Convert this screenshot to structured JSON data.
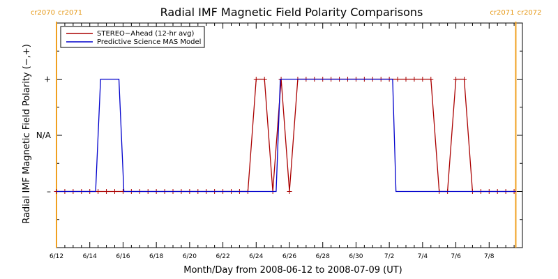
{
  "chart_data": {
    "type": "line",
    "title": "Radial IMF Magnetic Field Polarity Comparisons",
    "xlabel": "Month/Day from 2008-06-12 to 2008-07-09 (UT)",
    "ylabel": "Radial IMF Magnetic Field Polarity (−,+)",
    "x_start": "2008-06-12",
    "x_end": "2008-07-09",
    "xlim_days": [
      0,
      28
    ],
    "ylim": [
      -2,
      2
    ],
    "x_ticks": [
      {
        "day": 0,
        "label": "6/12"
      },
      {
        "day": 2,
        "label": "6/14"
      },
      {
        "day": 4,
        "label": "6/16"
      },
      {
        "day": 6,
        "label": "6/18"
      },
      {
        "day": 8,
        "label": "6/20"
      },
      {
        "day": 10,
        "label": "6/22"
      },
      {
        "day": 12,
        "label": "6/24"
      },
      {
        "day": 14,
        "label": "6/26"
      },
      {
        "day": 16,
        "label": "6/28"
      },
      {
        "day": 18,
        "label": "6/30"
      },
      {
        "day": 20,
        "label": "7/2"
      },
      {
        "day": 22,
        "label": "7/4"
      },
      {
        "day": 24,
        "label": "7/6"
      },
      {
        "day": 26,
        "label": "7/8"
      }
    ],
    "y_ticks": [
      {
        "value": 1,
        "label": "+"
      },
      {
        "value": 0,
        "label": "N/A"
      },
      {
        "value": -1,
        "label": "–"
      }
    ],
    "carrington_markers": [
      {
        "day": 0,
        "left_label": "cr2070",
        "right_label": "cr2071"
      },
      {
        "day": 27.6,
        "left_label": "cr2071",
        "right_label": "cr2072"
      }
    ],
    "marker_color": "#f0a020",
    "series": [
      {
        "name": "STEREO−Ahead (12-hr avg)",
        "color": "#aa0000",
        "marker": "+",
        "points": [
          [
            0,
            -1
          ],
          [
            0.5,
            -1
          ],
          [
            1,
            -1
          ],
          [
            1.5,
            -1
          ],
          [
            2,
            -1
          ],
          [
            2.5,
            -1
          ],
          [
            3,
            -1
          ],
          [
            3.5,
            -1
          ],
          [
            4,
            -1
          ],
          [
            4.5,
            -1
          ],
          [
            5,
            -1
          ],
          [
            5.5,
            -1
          ],
          [
            6,
            -1
          ],
          [
            6.5,
            -1
          ],
          [
            7,
            -1
          ],
          [
            7.5,
            -1
          ],
          [
            8,
            -1
          ],
          [
            8.5,
            -1
          ],
          [
            9,
            -1
          ],
          [
            9.5,
            -1
          ],
          [
            10,
            -1
          ],
          [
            10.5,
            -1
          ],
          [
            11,
            -1
          ],
          [
            11.5,
            -1
          ],
          [
            12,
            1
          ],
          [
            12.5,
            1
          ],
          [
            13,
            -1
          ],
          [
            13.5,
            1
          ],
          [
            14,
            -1
          ],
          [
            14.5,
            1
          ],
          [
            15,
            1
          ],
          [
            15.5,
            1
          ],
          [
            16,
            1
          ],
          [
            16.5,
            1
          ],
          [
            17,
            1
          ],
          [
            17.5,
            1
          ],
          [
            18,
            1
          ],
          [
            18.5,
            1
          ],
          [
            19,
            1
          ],
          [
            19.5,
            1
          ],
          [
            20,
            1
          ],
          [
            20.5,
            1
          ],
          [
            21,
            1
          ],
          [
            21.5,
            1
          ],
          [
            22,
            1
          ],
          [
            22.5,
            1
          ],
          [
            23,
            -1
          ],
          [
            23.5,
            -1
          ],
          [
            24,
            1
          ],
          [
            24.5,
            1
          ],
          [
            25,
            -1
          ],
          [
            25.5,
            -1
          ],
          [
            26,
            -1
          ],
          [
            26.5,
            -1
          ],
          [
            27,
            -1
          ],
          [
            27.5,
            -1
          ]
        ]
      },
      {
        "name": "Predictive Science MAS Model",
        "color": "#0000cc",
        "marker": "none",
        "points": [
          [
            0,
            -1
          ],
          [
            2.35,
            -1
          ],
          [
            2.65,
            1
          ],
          [
            3.75,
            1
          ],
          [
            4.05,
            -1
          ],
          [
            13.2,
            -1
          ],
          [
            13.45,
            1
          ],
          [
            20.2,
            1
          ],
          [
            20.4,
            -1
          ],
          [
            27.6,
            -1
          ]
        ]
      }
    ],
    "legend_position": "top-left",
    "grid": false
  }
}
